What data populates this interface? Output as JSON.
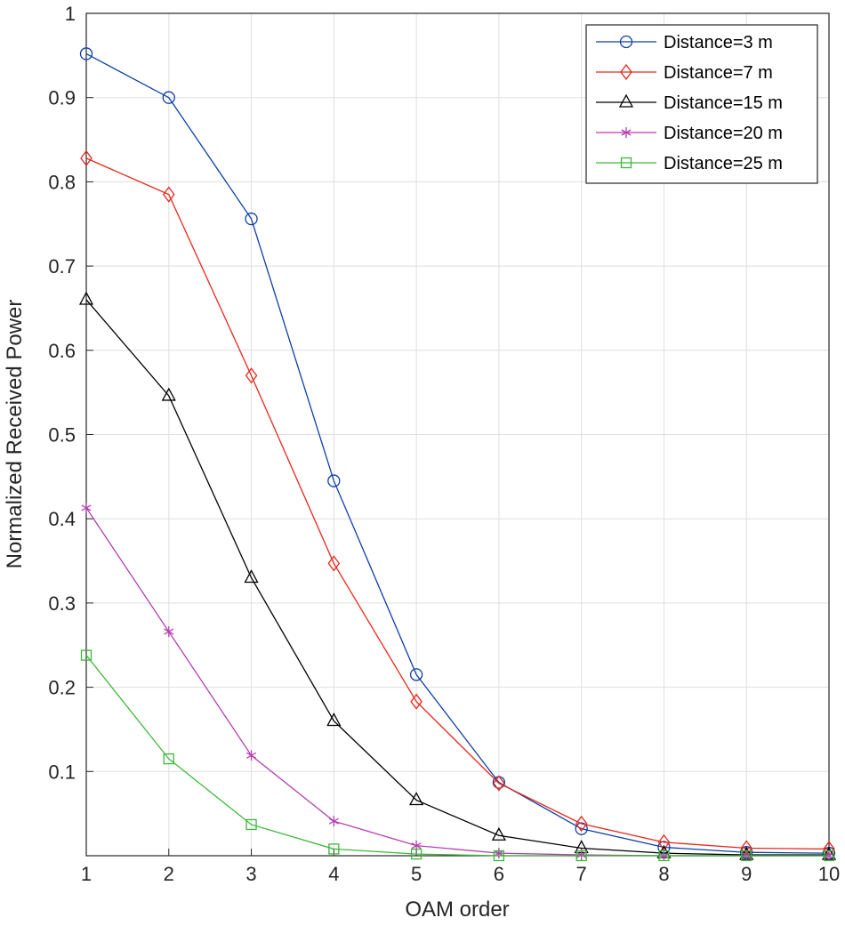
{
  "chart_data": {
    "type": "line",
    "title": "",
    "xlabel": "OAM order",
    "ylabel": "Normalized Received Power",
    "xlim": [
      1,
      10
    ],
    "ylim": [
      0,
      1
    ],
    "grid": true,
    "legend_position": "top-right",
    "x_ticks": [
      1,
      2,
      3,
      4,
      5,
      6,
      7,
      8,
      9,
      10
    ],
    "x_tick_labels": [
      "1",
      "2",
      "3",
      "4",
      "5",
      "6",
      "7",
      "8",
      "9",
      "10"
    ],
    "y_ticks": [
      0.1,
      0.2,
      0.3,
      0.4,
      0.5,
      0.6,
      0.7,
      0.8,
      0.9,
      1
    ],
    "y_tick_labels": [
      "0.1",
      "0.2",
      "0.3",
      "0.4",
      "0.5",
      "0.6",
      "0.7",
      "0.8",
      "0.9",
      "1"
    ],
    "x": [
      1,
      2,
      3,
      4,
      5,
      6,
      7,
      8,
      9,
      10
    ],
    "series": [
      {
        "name": "Distance=3 m",
        "color": "#0d3fa6",
        "marker": "circle",
        "values": [
          0.952,
          0.9,
          0.756,
          0.445,
          0.215,
          0.087,
          0.032,
          0.01,
          0.004,
          0.003
        ]
      },
      {
        "name": "Distance=7 m",
        "color": "#e8271b",
        "marker": "diamond",
        "values": [
          0.828,
          0.785,
          0.57,
          0.347,
          0.183,
          0.086,
          0.038,
          0.016,
          0.009,
          0.008
        ]
      },
      {
        "name": "Distance=15 m",
        "color": "#000000",
        "marker": "triangle",
        "values": [
          0.66,
          0.546,
          0.33,
          0.16,
          0.066,
          0.024,
          0.009,
          0.003,
          0.001,
          0.001
        ]
      },
      {
        "name": "Distance=20 m",
        "color": "#b53fb0",
        "marker": "asterisk",
        "values": [
          0.413,
          0.266,
          0.119,
          0.041,
          0.012,
          0.003,
          0.001,
          0.0,
          0.0,
          0.0
        ]
      },
      {
        "name": "Distance=25 m",
        "color": "#3cb83a",
        "marker": "square",
        "values": [
          0.238,
          0.115,
          0.037,
          0.008,
          0.002,
          0.0,
          0.0,
          0.0,
          0.0,
          0.0
        ]
      }
    ]
  }
}
